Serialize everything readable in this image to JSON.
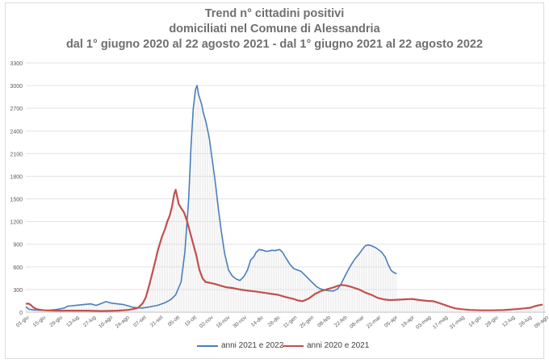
{
  "chart_data": {
    "type": "line",
    "title": [
      "Trend n° cittadini positivi",
      "domiciliati nel Comune di Alessandria",
      "dal 1° giugno 2020 al 22 agosto 2021 - dal 1° giugno 2021 al 22 agosto 2022"
    ],
    "xlabel": "",
    "ylabel": "",
    "ylim": [
      0,
      3300
    ],
    "yticks": [
      0,
      300,
      600,
      900,
      1200,
      1500,
      1800,
      2100,
      2400,
      2700,
      3000,
      3300
    ],
    "x_tick_labels": [
      "01-giu",
      "15-giu",
      "29-giu",
      "13-lug",
      "27-lug",
      "10-ago",
      "24-ago",
      "07-set",
      "21-set",
      "05-ott",
      "19-ott",
      "02-nov",
      "16-nov",
      "30-nov",
      "14-dic",
      "28-dic",
      "11-gen",
      "25-gen",
      "08-feb",
      "22-feb",
      "08-mar",
      "22-mar",
      "05-apr",
      "19-apr",
      "03-mag",
      "17-mag",
      "31-mag",
      "14-giu",
      "28-giu",
      "12-lug",
      "26-lug",
      "09-ago"
    ],
    "grid": "horizontal",
    "legend_position": "bottom",
    "series": [
      {
        "name": "anni 2021 e 2022",
        "color": "#4a7ebb",
        "points": [
          [
            0,
            70
          ],
          [
            4,
            40
          ],
          [
            10,
            30
          ],
          [
            20,
            25
          ],
          [
            30,
            25
          ],
          [
            40,
            35
          ],
          [
            50,
            55
          ],
          [
            55,
            80
          ],
          [
            65,
            90
          ],
          [
            75,
            100
          ],
          [
            85,
            110
          ],
          [
            92,
            90
          ],
          [
            100,
            120
          ],
          [
            105,
            140
          ],
          [
            112,
            120
          ],
          [
            120,
            110
          ],
          [
            128,
            100
          ],
          [
            135,
            80
          ],
          [
            140,
            65
          ],
          [
            145,
            60
          ],
          [
            152,
            55
          ],
          [
            162,
            70
          ],
          [
            172,
            90
          ],
          [
            182,
            125
          ],
          [
            190,
            170
          ],
          [
            196,
            230
          ],
          [
            203,
            400
          ],
          [
            208,
            800
          ],
          [
            213,
            1500
          ],
          [
            216,
            2200
          ],
          [
            219,
            2700
          ],
          [
            222,
            2950
          ],
          [
            224,
            3000
          ],
          [
            226,
            2880
          ],
          [
            230,
            2750
          ],
          [
            232,
            2650
          ],
          [
            236,
            2500
          ],
          [
            240,
            2300
          ],
          [
            244,
            2000
          ],
          [
            248,
            1700
          ],
          [
            252,
            1350
          ],
          [
            256,
            1050
          ],
          [
            260,
            780
          ],
          [
            265,
            560
          ],
          [
            270,
            480
          ],
          [
            275,
            440
          ],
          [
            280,
            420
          ],
          [
            285,
            470
          ],
          [
            290,
            560
          ],
          [
            294,
            690
          ],
          [
            298,
            730
          ],
          [
            301,
            790
          ],
          [
            305,
            830
          ],
          [
            310,
            820
          ],
          [
            315,
            805
          ],
          [
            318,
            810
          ],
          [
            322,
            820
          ],
          [
            326,
            815
          ],
          [
            332,
            830
          ],
          [
            336,
            790
          ],
          [
            340,
            720
          ],
          [
            345,
            640
          ],
          [
            350,
            580
          ],
          [
            355,
            560
          ],
          [
            360,
            540
          ],
          [
            365,
            490
          ],
          [
            370,
            440
          ],
          [
            375,
            390
          ],
          [
            380,
            340
          ],
          [
            385,
            310
          ],
          [
            392,
            290
          ],
          [
            396,
            285
          ],
          [
            402,
            280
          ],
          [
            408,
            310
          ],
          [
            412,
            370
          ],
          [
            416,
            450
          ],
          [
            420,
            530
          ],
          [
            425,
            620
          ],
          [
            430,
            700
          ],
          [
            435,
            760
          ],
          [
            440,
            830
          ],
          [
            444,
            880
          ],
          [
            448,
            890
          ],
          [
            452,
            880
          ],
          [
            458,
            850
          ],
          [
            465,
            800
          ],
          [
            470,
            730
          ],
          [
            474,
            630
          ],
          [
            478,
            550
          ],
          [
            482,
            520
          ],
          [
            485,
            510
          ]
        ]
      },
      {
        "name": "anni 2020 e 2021",
        "color": "#c0504d",
        "points": [
          [
            0,
            110
          ],
          [
            3,
            115
          ],
          [
            6,
            100
          ],
          [
            9,
            70
          ],
          [
            14,
            40
          ],
          [
            24,
            25
          ],
          [
            40,
            20
          ],
          [
            60,
            20
          ],
          [
            80,
            20
          ],
          [
            100,
            15
          ],
          [
            120,
            20
          ],
          [
            134,
            30
          ],
          [
            142,
            45
          ],
          [
            147,
            60
          ],
          [
            150,
            90
          ],
          [
            153,
            120
          ],
          [
            157,
            200
          ],
          [
            162,
            380
          ],
          [
            168,
            620
          ],
          [
            173,
            830
          ],
          [
            178,
            1000
          ],
          [
            182,
            1100
          ],
          [
            185,
            1200
          ],
          [
            188,
            1270
          ],
          [
            191,
            1390
          ],
          [
            194,
            1560
          ],
          [
            196,
            1620
          ],
          [
            198,
            1530
          ],
          [
            200,
            1430
          ],
          [
            203,
            1380
          ],
          [
            207,
            1320
          ],
          [
            211,
            1200
          ],
          [
            215,
            1050
          ],
          [
            219,
            900
          ],
          [
            223,
            750
          ],
          [
            227,
            560
          ],
          [
            231,
            450
          ],
          [
            235,
            400
          ],
          [
            240,
            390
          ],
          [
            247,
            375
          ],
          [
            255,
            350
          ],
          [
            262,
            330
          ],
          [
            270,
            320
          ],
          [
            280,
            300
          ],
          [
            290,
            285
          ],
          [
            300,
            275
          ],
          [
            310,
            260
          ],
          [
            320,
            245
          ],
          [
            330,
            230
          ],
          [
            340,
            200
          ],
          [
            350,
            175
          ],
          [
            356,
            155
          ],
          [
            362,
            145
          ],
          [
            370,
            180
          ],
          [
            378,
            240
          ],
          [
            386,
            280
          ],
          [
            396,
            310
          ],
          [
            403,
            330
          ],
          [
            408,
            350
          ],
          [
            413,
            360
          ],
          [
            418,
            355
          ],
          [
            424,
            340
          ],
          [
            430,
            320
          ],
          [
            436,
            300
          ],
          [
            444,
            260
          ],
          [
            452,
            230
          ],
          [
            460,
            190
          ],
          [
            468,
            170
          ],
          [
            476,
            160
          ],
          [
            485,
            165
          ],
          [
            495,
            170
          ],
          [
            505,
            175
          ],
          [
            515,
            160
          ],
          [
            525,
            150
          ],
          [
            533,
            145
          ],
          [
            541,
            120
          ],
          [
            548,
            95
          ],
          [
            555,
            70
          ],
          [
            562,
            50
          ],
          [
            570,
            40
          ],
          [
            580,
            30
          ],
          [
            595,
            25
          ],
          [
            610,
            25
          ],
          [
            625,
            28
          ],
          [
            640,
            40
          ],
          [
            652,
            50
          ],
          [
            660,
            60
          ],
          [
            666,
            80
          ],
          [
            670,
            90
          ],
          [
            673,
            95
          ],
          [
            676,
            100
          ]
        ]
      }
    ],
    "x_max": 680
  }
}
